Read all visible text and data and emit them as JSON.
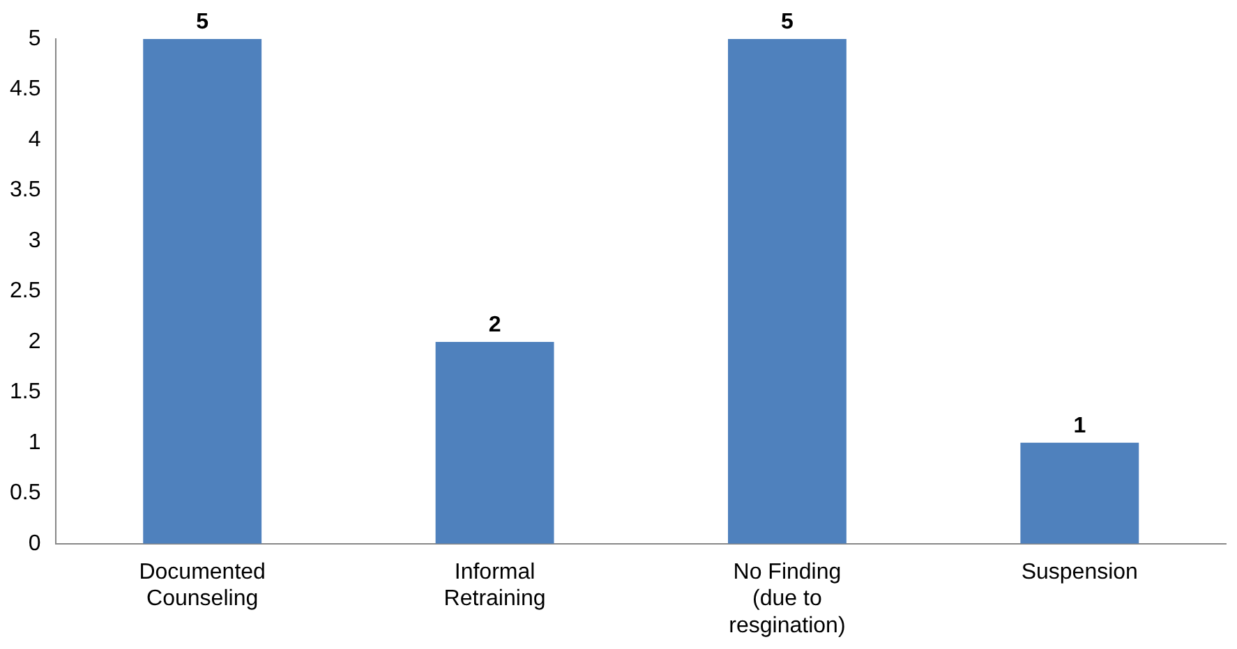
{
  "chart_data": {
    "type": "bar",
    "categories": [
      "Documented Counseling",
      "Informal Retraining",
      "No Finding (due to resgination)",
      "Suspension"
    ],
    "values": [
      5,
      2,
      5,
      1
    ],
    "color": "#4f81bd",
    "data_labels": true,
    "ylim": [
      0,
      5
    ],
    "yticks": [
      0,
      0.5,
      1,
      1.5,
      2,
      2.5,
      3,
      3.5,
      4,
      4.5,
      5
    ],
    "grid": false,
    "legend": false
  }
}
